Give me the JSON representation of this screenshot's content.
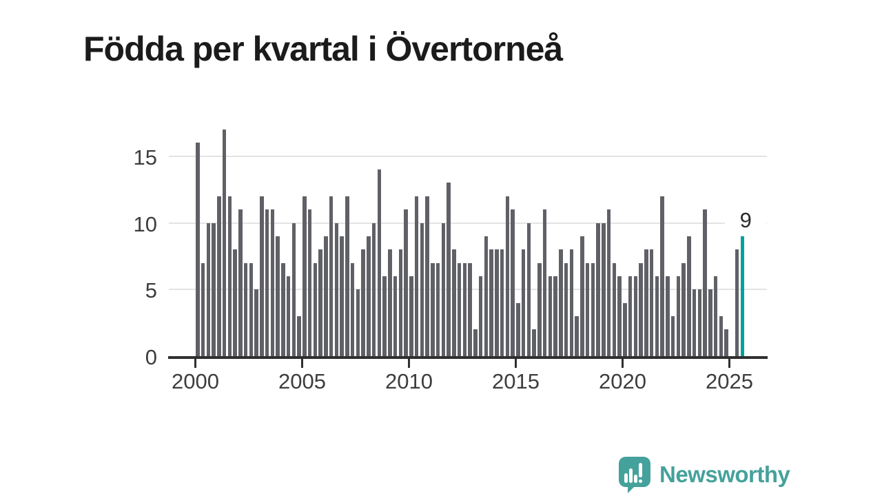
{
  "title": "Födda per kvartal i Övertorneå",
  "chart_data": {
    "type": "bar",
    "title": "Födda per kvartal i Övertorneå",
    "x_start_quarter": "2000 Q1",
    "x_end_quarter": "2025 Q3",
    "frequency": "quarterly",
    "values": [
      16,
      7,
      10,
      10,
      12,
      17,
      12,
      8,
      11,
      7,
      7,
      5,
      12,
      11,
      11,
      9,
      7,
      6,
      10,
      3,
      12,
      11,
      7,
      8,
      9,
      12,
      10,
      9,
      12,
      7,
      5,
      8,
      9,
      10,
      14,
      6,
      8,
      6,
      8,
      11,
      6,
      12,
      10,
      12,
      7,
      7,
      10,
      13,
      8,
      7,
      7,
      7,
      2,
      6,
      9,
      8,
      8,
      8,
      12,
      11,
      4,
      8,
      10,
      2,
      7,
      11,
      6,
      6,
      8,
      7,
      8,
      3,
      9,
      7,
      7,
      10,
      10,
      11,
      7,
      6,
      4,
      6,
      6,
      7,
      8,
      8,
      6,
      12,
      6,
      3,
      6,
      7,
      9,
      5,
      5,
      11,
      5,
      6,
      3,
      2,
      0,
      8,
      9
    ],
    "x_tick_labels": [
      "2000",
      "2005",
      "2010",
      "2015",
      "2020",
      "2025"
    ],
    "y_ticks": [
      0,
      5,
      10,
      15
    ],
    "ylim": [
      0,
      17
    ],
    "grid": "horizontal",
    "legend": "none",
    "bar_color": "#606067",
    "axis_color": "#2f2f2f",
    "gridline_color": "#e3e3e3",
    "highlight": {
      "quarter": "2025 Q3",
      "index": 102,
      "value": 9,
      "label": "9",
      "color": "#00a29b"
    }
  },
  "branding": {
    "logo_text": "Newsworthy",
    "logo_color": "#45a19b",
    "logo_icon": "newsworthy-speech-bubble-chart-icon"
  }
}
